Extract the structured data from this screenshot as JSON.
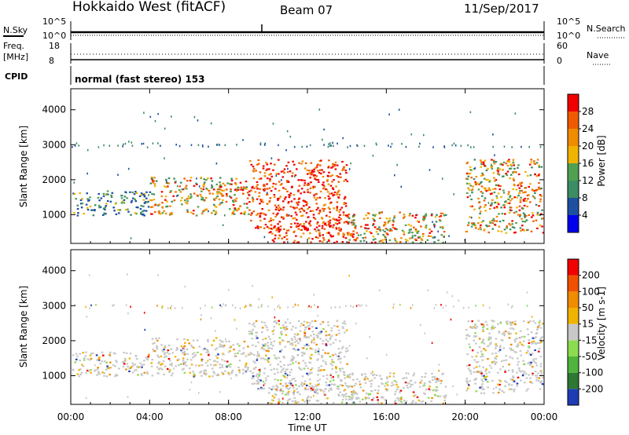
{
  "header": {
    "title": "Hokkaido West (fitACF)",
    "beam": "Beam 07",
    "date": "11/Sep/2017"
  },
  "noise_panel": {
    "left_label": "N.Sky",
    "right_label": "N.Search",
    "ticks": [
      "10^5",
      "10^0"
    ],
    "right_ticks": [
      "10^5",
      "10^0"
    ]
  },
  "freq_panel": {
    "left_label_line1": "Freq.",
    "left_label_line2": "[MHz]",
    "left_ticks": [
      "18",
      "8"
    ],
    "right_label": "Nave",
    "right_ticks": [
      "60",
      "0"
    ]
  },
  "cpid_panel": {
    "label": "CPID",
    "text": "normal (fast stereo) 153"
  },
  "chart_data": [
    {
      "type": "heatmap",
      "title": "",
      "xlabel": "",
      "ylabel": "Slant Range [km]",
      "x_ticks": [
        "00:00",
        "04:00",
        "08:00",
        "12:00",
        "16:00",
        "20:00",
        "00:00"
      ],
      "y_ticks": [
        1000,
        2000,
        3000,
        4000
      ],
      "ylim": [
        180,
        4600
      ],
      "xlim_hours": [
        0,
        24
      ],
      "colorbar": {
        "label": "Power [dB]",
        "ticks": [
          "28",
          "24",
          "20",
          "16",
          "12",
          "8",
          "4"
        ],
        "colors": [
          "#0000ee",
          "#1e50a0",
          "#3c8c64",
          "#50a050",
          "#f0b400",
          "#f08c00",
          "#f05a00",
          "#f00000"
        ]
      },
      "echo_regions": [
        {
          "start_h": 0.0,
          "end_h": 4.0,
          "range_km": [
            1000,
            1700
          ],
          "level": "weak-moderate"
        },
        {
          "start_h": 4.0,
          "end_h": 9.0,
          "range_km": [
            1000,
            2100
          ],
          "level": "moderate-strong"
        },
        {
          "start_h": 9.0,
          "end_h": 14.0,
          "range_km": [
            600,
            2600
          ],
          "level": "strong"
        },
        {
          "start_h": 10.0,
          "end_h": 14.5,
          "range_km": [
            180,
            800
          ],
          "level": "strong"
        },
        {
          "start_h": 14.0,
          "end_h": 19.0,
          "range_km": [
            200,
            1100
          ],
          "level": "moderate-strong"
        },
        {
          "start_h": 20.0,
          "end_h": 24.0,
          "range_km": [
            500,
            2600
          ],
          "level": "moderate-strong"
        }
      ]
    },
    {
      "type": "heatmap",
      "title": "",
      "xlabel": "Time UT",
      "ylabel": "Slant Range [km]",
      "x_ticks": [
        "00:00",
        "04:00",
        "08:00",
        "12:00",
        "16:00",
        "20:00",
        "00:00"
      ],
      "y_ticks": [
        1000,
        2000,
        3000,
        4000
      ],
      "ylim": [
        180,
        4600
      ],
      "xlim_hours": [
        0,
        24
      ],
      "colorbar": {
        "label": "Velocity [m s-1]",
        "ticks": [
          "200",
          "100",
          "50",
          "15",
          "-15",
          "-50",
          "-100",
          "-200"
        ],
        "colors": [
          "#1e3cb4",
          "#2d7832",
          "#50b43c",
          "#8cdc50",
          "#c8c8c8",
          "#f0b400",
          "#f08c00",
          "#f05000",
          "#f00000"
        ]
      },
      "dominant_velocity": "-15 to 15"
    }
  ]
}
